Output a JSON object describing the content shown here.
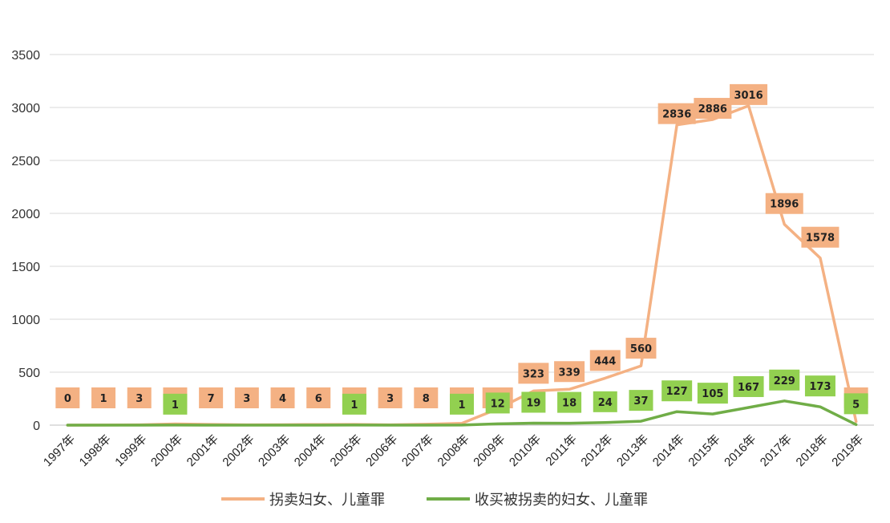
{
  "chart_data": {
    "type": "line",
    "title": "",
    "xlabel": "",
    "ylabel": "",
    "ylim": [
      0,
      3500
    ],
    "yticks": [
      0,
      500,
      1000,
      1500,
      2000,
      2500,
      3000,
      3500
    ],
    "grid": "horizontal",
    "legend_position": "bottom",
    "categories": [
      "1997年",
      "1998年",
      "1999年",
      "2000年",
      "2001年",
      "2002年",
      "2003年",
      "2004年",
      "2005年",
      "2006年",
      "2007年",
      "2008年",
      "2009年",
      "2010年",
      "2011年",
      "2012年",
      "2013年",
      "2014年",
      "2015年",
      "2016年",
      "2017年",
      "2018年",
      "2019年"
    ],
    "series": [
      {
        "name": "拐卖妇女、儿童罪",
        "color": "#f4b183",
        "label_color": "#f4b183",
        "values": [
          0,
          1,
          3,
          11,
          7,
          3,
          4,
          6,
          7,
          3,
          8,
          17,
          153,
          323,
          339,
          444,
          560,
          2836,
          2886,
          3016,
          1896,
          1578,
          34
        ]
      },
      {
        "name": "收买被拐卖的妇女、儿童罪",
        "color": "#70ad47",
        "label_color": "#92d050",
        "values": [
          null,
          null,
          null,
          1,
          null,
          null,
          null,
          null,
          1,
          null,
          null,
          1,
          12,
          19,
          18,
          24,
          37,
          127,
          105,
          167,
          229,
          173,
          5
        ]
      }
    ]
  }
}
